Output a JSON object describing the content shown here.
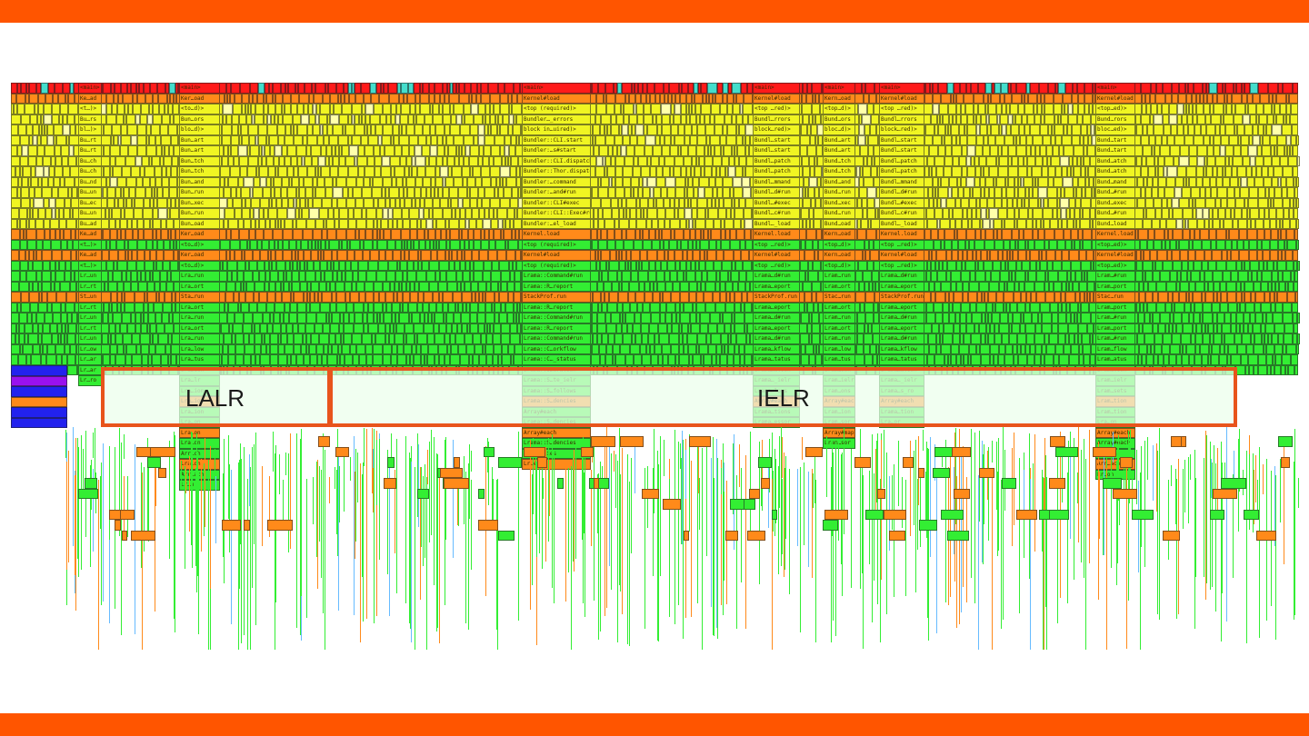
{
  "colors": {
    "accent_bar": "#ff5500",
    "highlight_border": "#e8541c",
    "frame_red": "#ff1a1a",
    "frame_orange": "#ff8a1a",
    "frame_yellow": "#f0f522",
    "frame_green": "#33ee33",
    "frame_blue": "#2222ee",
    "frame_purple": "#9911ee",
    "frame_cyan": "#44ddcc"
  },
  "highlights": {
    "lalr": "LALR",
    "ielr": "IELR"
  },
  "stacks": [
    {
      "x0": 86,
      "w": 26,
      "labels": [
        "<main>",
        "Ke…ad",
        "<t…)>",
        "Bu…rs",
        "bl…)>",
        "Bu…rt",
        "Bu…rt",
        "Bu…ch",
        "Bu…ch",
        "Bu…nd",
        "Bu…un",
        "Bu…ec",
        "Bu…un",
        "Bu…ad",
        "Ke…ad",
        "<t…)>",
        "Ke…ad",
        "<t…)>",
        "Lr…un",
        "Lr…rt",
        "St…un",
        "Lr…rt",
        "Lr…un",
        "Lr…rt",
        "Lr…un",
        "Lr…ow",
        "Lr…ar",
        "Lr…ar",
        "Lr…ro"
      ]
    },
    {
      "x0": 197,
      "w": 45,
      "labels": [
        "<main>",
        "Ker…oad",
        "<to…d)>",
        "Bun…ors",
        "blo…d)>",
        "Bun…art",
        "Bun…art",
        "Bun…tch",
        "Bun…tch",
        "Bun…and",
        "Bun…run",
        "Bun…xec",
        "Bun…run",
        "Bun…oad",
        "Ker…oad",
        "<to…d)>",
        "Ker…oad",
        "<to…d)>",
        "Lra…run",
        "Lra…ort",
        "Sta…run",
        "Lra…ort",
        "Lra…run",
        "Lra…ort",
        "Lra…run",
        "Lra…low",
        "Lra…tus",
        "Lra…ion",
        "Lra…lr",
        "Lra…ion",
        "Lra…ion",
        "Lra…ion",
        "Lra…on",
        "Lra…on",
        "Lra…on",
        "Arr…ch",
        "Lra…on",
        "Arr…ach",
        "Lr…n"
      ]
    },
    {
      "x0": 574,
      "w": 76,
      "labels": [
        "<main>",
        "Kernel#load",
        "<top (required)>",
        "Bundler…_errors",
        "block in…uired)>",
        "Bundler::CLI.start",
        "Bundler:…s#start",
        "Bundler::CLI.dispatch",
        "Bundler::Thor.dispatch",
        "Bundler:…command",
        "Bundler:…and#run",
        "Bundler::CLI#exec",
        "Bundler::CLI::Exec#run",
        "Bundler:…el_load",
        "Kernel.load",
        "<top (required)>",
        "Kernel#load",
        "<top (required)>",
        "Lrama::Command#run",
        "Lrama::R…report",
        "StackProf.run",
        "Lrama::R…report",
        "Lrama::Command#run",
        "Lrama::R…report",
        "Lrama::Command#run",
        "Lrama::C…orkflow",
        "Lrama::C…_status",
        "Lrama::I…uration",
        "Lrama::S…te_ielr",
        "Lrama::S…follows",
        "Lrama::S…dencies",
        "Array#each",
        "Lrama::S…dencies",
        "Array#each",
        "Lrama::S…dencies",
        "Lrama…cies",
        "Lr…es"
      ]
    },
    {
      "x0": 828,
      "w": 52,
      "labels": [
        "<main>",
        "Kernel#load",
        "<top …red)>",
        "Bundl…rrors",
        "block…red)>",
        "Bundl…start",
        "Bundl…start",
        "Bundl…patch",
        "Bundl…patch",
        "Bundl…mmand",
        "Bundl…d#run",
        "Bundl…#exec",
        "Bundl…c#run",
        "Bundl…_load",
        "Kernel.load",
        "<top …red)>",
        "Kernel#load",
        "<top …red)>",
        "Lrama…d#run",
        "Lrama…eport",
        "StackProf.run",
        "Lrama…eport",
        "Lrama…d#run",
        "Lrama…eport",
        "Lrama…d#run",
        "Lrama…kflow",
        "Lrama…tatus",
        "Lrama…ation",
        "Lrama…_ielr",
        "Lrama…lows",
        "Array#each",
        "Lrama…tions",
        "Lrama…essor"
      ]
    },
    {
      "x0": 905,
      "w": 36,
      "labels": [
        "<main>",
        "Kern…oad",
        "<top…d)>",
        "Bund…ors",
        "bloc…d)>",
        "Bund…art",
        "Bund…art",
        "Bund…tch",
        "Bund…tch",
        "Bund…and",
        "Bund…run",
        "Bund…xec",
        "Bund…run",
        "Bund…oad",
        "Kern…oad",
        "<top…d)>",
        "Kern…oad",
        "<top…d)>",
        "Lram…run",
        "Lram…ort",
        "Stac…run",
        "Lram…ort",
        "Lram…run",
        "Lram…ort",
        "Lram…run",
        "Lram…low",
        "Lram…tus",
        "Lram…ion",
        "Lram…ielr",
        "Lram…ons",
        "Array#each",
        "Lram…ion",
        "Lram…sor",
        "Array#map",
        "Lram…sor"
      ]
    },
    {
      "x0": 967,
      "w": 50,
      "labels": [
        "<main>",
        "Kernel#load",
        "<top …red)>",
        "Bundl…rrors",
        "block…red)>",
        "Bundl…start",
        "Bundl…start",
        "Bundl…patch",
        "Bundl…patch",
        "Bundl…mmand",
        "Bundl…d#run",
        "Bundl…#exec",
        "Bundl…c#run",
        "Bundl…_load",
        "Kernel.load",
        "<top …red)>",
        "Kernel#load",
        "<top …red)>",
        "Lrama…d#run",
        "Lrama…eport",
        "StackProf.run",
        "Lrama…eport",
        "Lrama…d#run",
        "Lrama…eport",
        "Lrama…d#run",
        "Lrama…kflow",
        "Lrama…tatus",
        "Lrama…ation",
        "Lrama…_ielr",
        "Lrama…s_ro",
        "Array#each",
        "Lrama…tion",
        "Lra…or"
      ]
    },
    {
      "x0": 1205,
      "w": 44,
      "labels": [
        "<main>",
        "Kernel#load",
        "<top…ed)>",
        "Bund…rors",
        "bloc…ed)>",
        "Bund…tart",
        "Bund…tart",
        "Bund…atch",
        "Bund…atch",
        "Bund…mand",
        "Bund…#run",
        "Bund…exec",
        "Bund…#run",
        "Bund…load",
        "Kernel.load",
        "<top…ed)>",
        "Kernel#load",
        "<top…ed)>",
        "Lram…#run",
        "Lram…port",
        "Stac…run",
        "Lram…port",
        "Lram…#run",
        "Lram…port",
        "Lram…#run",
        "Lram…flow",
        "Lram…atus",
        "Lram…tion",
        "Lram…ielr",
        "Lram…sets",
        "Lram…tion",
        "Lram…tion",
        "Lra…on",
        "Array#each",
        "Array#each",
        "Lra…on",
        "Arr…ach",
        "Lr…on"
      ]
    }
  ]
}
